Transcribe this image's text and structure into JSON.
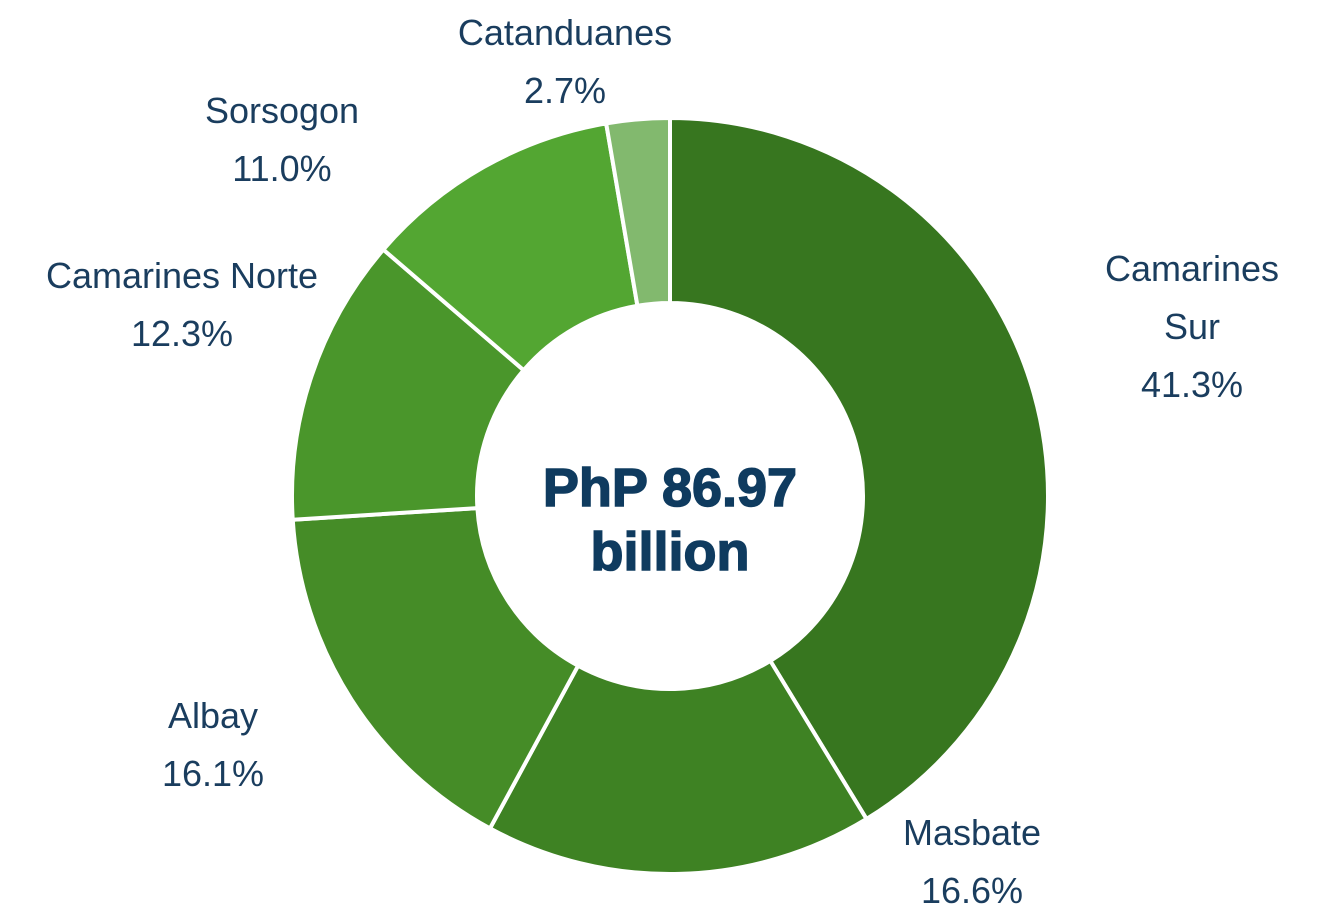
{
  "chart_data": {
    "type": "donut",
    "center_text": [
      "PhP 86.97",
      "billion"
    ],
    "categories": [
      "Camarines Sur",
      "Masbate",
      "Albay",
      "Camarines Norte",
      "Sorsogon",
      "Catanduanes"
    ],
    "values": [
      41.3,
      16.6,
      16.1,
      12.3,
      11.0,
      2.7
    ],
    "value_labels": [
      "41.3%",
      "16.6%",
      "16.1%",
      "12.3%",
      "11.0%",
      "2.7%"
    ],
    "colors": [
      "#37761f",
      "#3e8223",
      "#458c27",
      "#4a962b",
      "#53a632",
      "#82b96e"
    ]
  }
}
